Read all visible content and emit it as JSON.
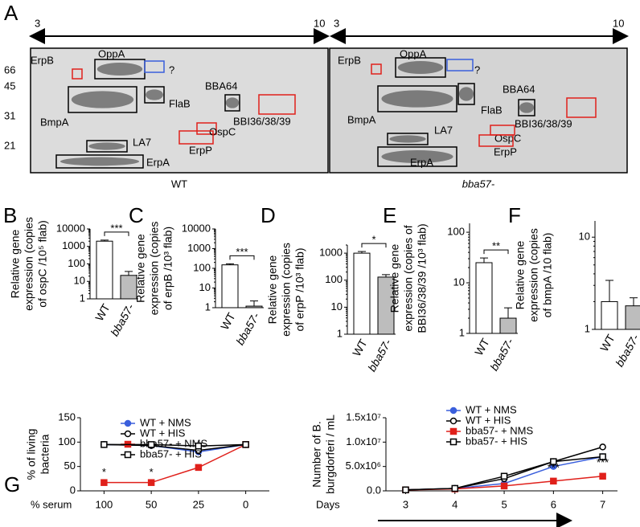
{
  "panel_a": {
    "label": "A",
    "mw_markers": [
      66,
      45,
      31,
      21
    ],
    "gels": [
      {
        "x_start": "3",
        "x_end": "10",
        "label": "WT",
        "spots": [
          {
            "text": "ErpB",
            "color": "#e0201b"
          },
          {
            "text": "OppA",
            "color": "#000000"
          },
          {
            "text": "?",
            "color": "#3a5fdc"
          },
          {
            "text": "BBA64",
            "color": "#000000"
          },
          {
            "text": "FlaB",
            "color": "#000000"
          },
          {
            "text": "BmpA",
            "color": "#000000"
          },
          {
            "text": "BBI36/38/39",
            "color": "#e0201b"
          },
          {
            "text": "OspC",
            "color": "#e0201b"
          },
          {
            "text": "LA7",
            "color": "#000000"
          },
          {
            "text": "ErpP",
            "color": "#e0201b"
          },
          {
            "text": "ErpA",
            "color": "#000000"
          }
        ]
      },
      {
        "x_start": "3",
        "x_end": "10",
        "label": "bba57-",
        "spots": [
          {
            "text": "ErpB",
            "color": "#e0201b"
          },
          {
            "text": "OppA",
            "color": "#000000"
          },
          {
            "text": "?",
            "color": "#3a5fdc"
          },
          {
            "text": "BBA64",
            "color": "#000000"
          },
          {
            "text": "FlaB",
            "color": "#000000"
          },
          {
            "text": "BmpA",
            "color": "#000000"
          },
          {
            "text": "BBI36/38/39",
            "color": "#e0201b"
          },
          {
            "text": "OspC",
            "color": "#e0201b"
          },
          {
            "text": "LA7",
            "color": "#000000"
          },
          {
            "text": "ErpP",
            "color": "#e0201b"
          },
          {
            "text": "ErpA",
            "color": "#000000"
          }
        ]
      }
    ]
  },
  "chart_data": [
    {
      "type": "bar",
      "label": "B",
      "log_scale": true,
      "ylabel": [
        "Relative gene",
        "expression (copies",
        "of ospC /10⁵ flab)"
      ],
      "categories": [
        "WT",
        "bba57-"
      ],
      "values": [
        2000,
        22
      ],
      "errors": [
        300,
        15
      ],
      "colors": [
        "#ffffff",
        "#bdbdbd"
      ],
      "ylim": [
        1,
        10000
      ],
      "yticks": [
        10000,
        1000,
        100,
        10,
        1
      ],
      "significance": "***"
    },
    {
      "type": "bar",
      "label": "C",
      "log_scale": true,
      "ylabel": [
        "Relative gene",
        "expression (copies",
        "of erpB /10³ flab)"
      ],
      "categories": [
        "WT",
        "bba57-"
      ],
      "values": [
        150,
        1.2
      ],
      "errors": [
        20,
        1
      ],
      "colors": [
        "#ffffff",
        "#bdbdbd"
      ],
      "ylim": [
        1,
        10000
      ],
      "yticks": [
        10000,
        1000,
        100,
        10,
        1
      ],
      "significance": "***"
    },
    {
      "type": "bar",
      "label": "D",
      "log_scale": true,
      "ylabel": [
        "Relative gene",
        "expression (copies",
        "of erpP /10³ flab)"
      ],
      "categories": [
        "WT",
        "bba57-"
      ],
      "values": [
        1000,
        130
      ],
      "errors": [
        150,
        30
      ],
      "colors": [
        "#ffffff",
        "#bdbdbd"
      ],
      "ylim": [
        1,
        2000
      ],
      "yticks": [
        1000,
        100,
        10,
        1
      ],
      "significance": "*"
    },
    {
      "type": "bar",
      "label": "E",
      "log_scale": true,
      "ylabel": [
        "Relative gene",
        "expression (copies of",
        "BBI36/38/39 /10³ flab)"
      ],
      "categories": [
        "WT",
        "bba57-"
      ],
      "values": [
        25,
        2
      ],
      "errors": [
        6,
        1.2
      ],
      "colors": [
        "#ffffff",
        "#bdbdbd"
      ],
      "ylim": [
        1,
        150
      ],
      "yticks": [
        100,
        10,
        1
      ],
      "significance": "**"
    },
    {
      "type": "bar",
      "label": "F",
      "log_scale": true,
      "ylabel": [
        "Relative gene",
        "expression (copies",
        "of bmpA /10 flab)"
      ],
      "categories": [
        "WT",
        "bba57-"
      ],
      "values": [
        2,
        1.8
      ],
      "errors": [
        1.4,
        0.4
      ],
      "colors": [
        "#ffffff",
        "#bdbdbd"
      ],
      "ylim": [
        1,
        15
      ],
      "yticks": [
        10,
        1
      ]
    },
    {
      "type": "line",
      "label": "G",
      "ylabel": [
        "% of living",
        "bacteria"
      ],
      "xlabel": "% serum",
      "categories": [
        "100",
        "50",
        "25",
        "0"
      ],
      "ylim": [
        0,
        150
      ],
      "yticks": [
        0,
        50,
        100,
        150
      ],
      "series": [
        {
          "name": "WT + NMS",
          "color": "#3a5fdc",
          "marker": "circle",
          "filled": true,
          "values": [
            95,
            93,
            80,
            95
          ]
        },
        {
          "name": "WT + HIS",
          "color": "#000000",
          "marker": "circle",
          "filled": false,
          "values": [
            95,
            93,
            83,
            95
          ]
        },
        {
          "name": "bba57- + NMS",
          "color": "#e0201b",
          "marker": "square",
          "filled": true,
          "values": [
            17,
            17,
            48,
            95
          ]
        },
        {
          "name": "bba57- + HIS",
          "color": "#000000",
          "marker": "square",
          "filled": false,
          "values": [
            95,
            95,
            92,
            95
          ]
        }
      ],
      "significance": [
        "*",
        "*",
        null,
        null
      ]
    },
    {
      "type": "line",
      "ylabel": [
        "Number of B.",
        "burgdorferi / mL"
      ],
      "xlabel": "Days",
      "x": [
        3,
        4,
        5,
        6,
        7
      ],
      "xlim": [
        2.6,
        7.3
      ],
      "xticks": [
        3,
        4,
        5,
        6,
        7
      ],
      "ylim": [
        0,
        15000000
      ],
      "yticks": [
        {
          "value": 0,
          "label": "0.0"
        },
        {
          "value": 5000000,
          "label": "5.0x10⁶"
        },
        {
          "value": 10000000,
          "label": "1.0x10⁷"
        },
        {
          "value": 15000000,
          "label": "1.5x10⁷"
        }
      ],
      "series": [
        {
          "name": "WT + NMS",
          "color": "#3a5fdc",
          "marker": "circle",
          "filled": true,
          "values": [
            200000,
            500000,
            1500000,
            5000000,
            7000000
          ]
        },
        {
          "name": "WT + HIS",
          "color": "#000000",
          "marker": "circle",
          "filled": false,
          "values": [
            200000,
            500000,
            2500000,
            6000000,
            9000000
          ]
        },
        {
          "name": "bba57- + NMS",
          "color": "#e0201b",
          "marker": "square",
          "filled": true,
          "values": [
            200000,
            400000,
            1000000,
            2000000,
            3000000
          ]
        },
        {
          "name": "bba57- + HIS",
          "color": "#000000",
          "marker": "square",
          "filled": false,
          "values": [
            200000,
            500000,
            3000000,
            6000000,
            7000000
          ]
        }
      ],
      "significance": [
        null,
        null,
        null,
        "***",
        "***"
      ]
    }
  ]
}
